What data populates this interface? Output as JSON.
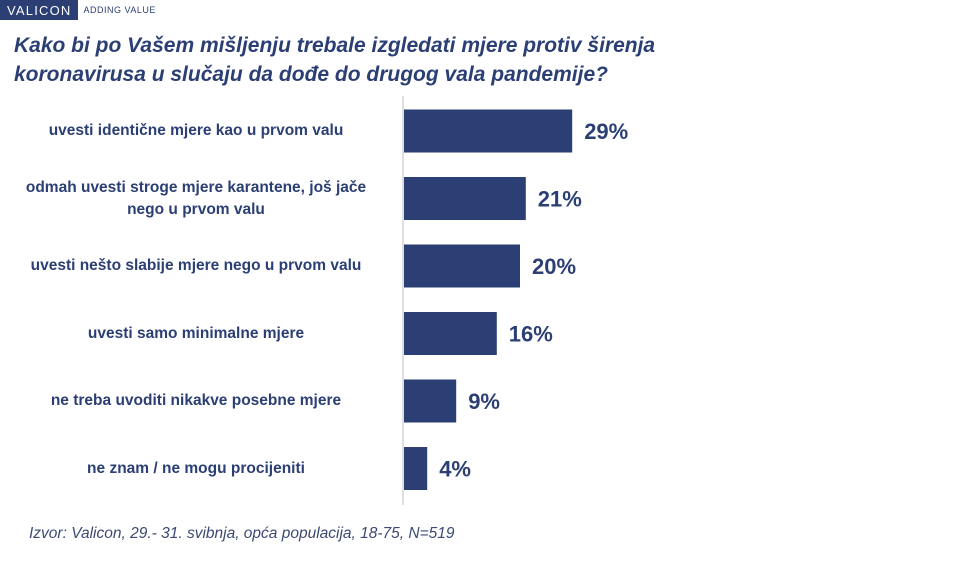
{
  "brand": {
    "logo": "VALICON",
    "tagline": "ADDING VALUE"
  },
  "title": "Kako bi po Vašem mišljenju trebale izgledati mjere protiv širenja koronavirusa u slučaju da dođe do drugog vala pandemije?",
  "source": "Izvor: Valicon, 29.- 31. svibnja, opća populacija, 18-75, N=519",
  "colors": {
    "bar": "#2b3f74",
    "text": "#2b3f74",
    "axis": "#bfbfbf"
  },
  "chart_data": {
    "type": "bar",
    "orientation": "horizontal",
    "categories": [
      "uvesti identične mjere kao u prvom valu",
      "odmah uvesti stroge mjere karantene, još jače nego u prvom valu",
      "uvesti nešto slabije mjere nego u prvom valu",
      "uvesti samo minimalne mjere",
      "ne treba uvoditi nikakve posebne mjere",
      "ne znam / ne mogu procijeniti"
    ],
    "values": [
      29,
      21,
      20,
      16,
      9,
      4
    ],
    "value_labels": [
      "29%",
      "21%",
      "20%",
      "16%",
      "9%",
      "4%"
    ],
    "unit": "%",
    "xlim": [
      0,
      100
    ],
    "grid": false,
    "legend": "none"
  }
}
